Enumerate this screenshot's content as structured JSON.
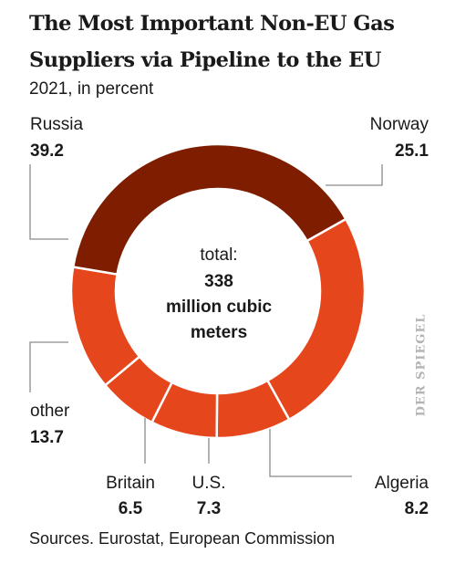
{
  "title": {
    "line1": "The Most Important Non-EU Gas",
    "line2": "Suppliers via Pipeline to the EU"
  },
  "subtitle": "2021, in percent",
  "center": {
    "line1": "total:",
    "line2": "338",
    "line3": "million cubic",
    "line4": "meters"
  },
  "source": "Sources. Eurostat, European Commission",
  "watermark": "DER SPIEGEL",
  "colors": {
    "dark": "#7e1d00",
    "bright": "#e5461c",
    "leader": "#8a8a8a"
  },
  "chart_data": {
    "type": "pie",
    "variant": "donut",
    "unit": "percent",
    "slices": [
      {
        "label": "Norway",
        "value": 25.1,
        "color": "#e5461c"
      },
      {
        "label": "Algeria",
        "value": 8.2,
        "color": "#e5461c"
      },
      {
        "label": "U.S.",
        "value": 7.3,
        "color": "#e5461c"
      },
      {
        "label": "Britain",
        "value": 6.5,
        "color": "#e5461c"
      },
      {
        "label": "other",
        "value": 13.7,
        "color": "#e5461c"
      },
      {
        "label": "Russia",
        "value": 39.2,
        "color": "#7e1d00"
      }
    ]
  }
}
